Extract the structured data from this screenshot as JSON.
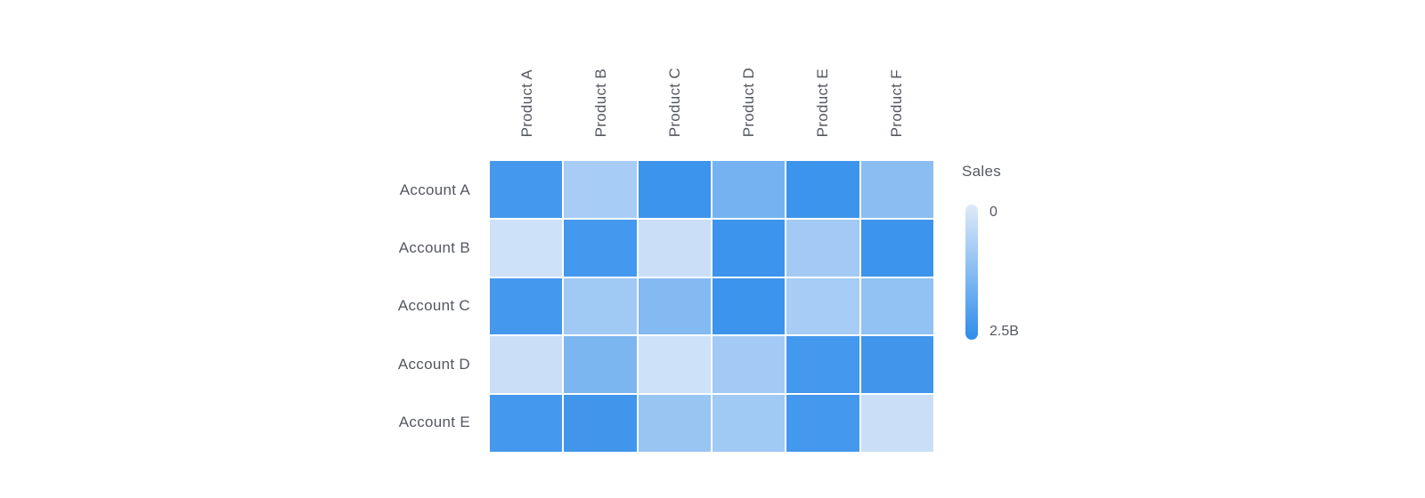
{
  "chart_data": {
    "type": "heatmap",
    "title": "",
    "columns": [
      "Product A",
      "Product B",
      "Product C",
      "Product D",
      "Product E",
      "Product F"
    ],
    "rows": [
      "Account A",
      "Account B",
      "Account C",
      "Account D",
      "Account E"
    ],
    "values_billions": [
      [
        2.2,
        0.8,
        2.3,
        1.5,
        2.3,
        1.2
      ],
      [
        0.25,
        2.2,
        0.3,
        2.3,
        0.85,
        2.3
      ],
      [
        2.2,
        0.9,
        1.3,
        2.3,
        0.8,
        1.1
      ],
      [
        0.3,
        1.4,
        0.25,
        0.85,
        2.2,
        2.25
      ],
      [
        2.2,
        2.25,
        1.0,
        0.9,
        2.2,
        0.3
      ]
    ],
    "legend": {
      "title": "Sales",
      "min": 0,
      "max": 2.5,
      "min_label": "0",
      "max_label": "2.5B",
      "position": "right"
    },
    "colors": {
      "low": "#dfeaf9",
      "high": "#2f8deb",
      "gap": "#ffffff",
      "label_text": "#54585f"
    },
    "layout": {
      "grid": "off",
      "column_labels_rotated": true
    }
  }
}
